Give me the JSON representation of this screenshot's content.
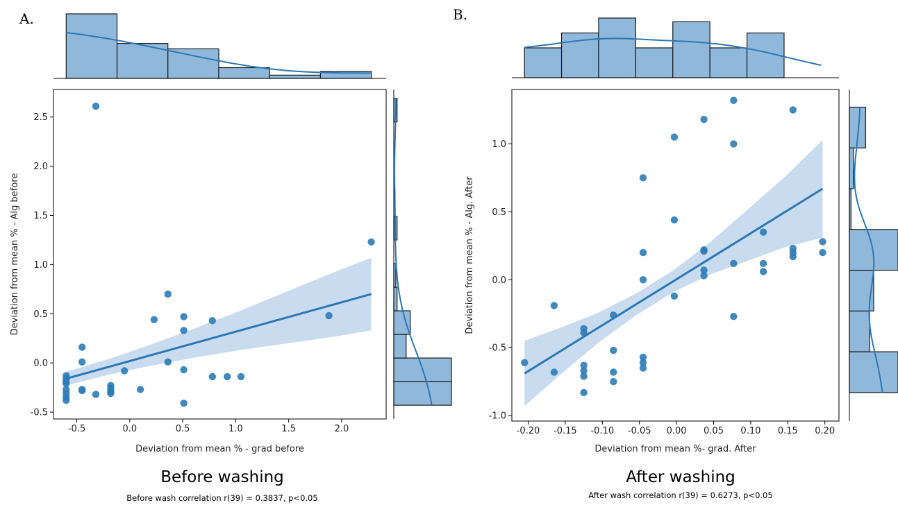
{
  "panels": [
    {
      "letter": "A.",
      "title": "Before washing",
      "subtitle": "Before wash correlation r(39) = 0.3837, p<0.05"
    },
    {
      "letter": "B.",
      "title": "After washing",
      "subtitle": "After wash correlation r(39) = 0.6273, p<0.05"
    }
  ],
  "colors": {
    "point": "#2c7bb6",
    "line": "#2b76b5",
    "band": "#c9dcef",
    "bar": "#8fb8da",
    "bar_edge": "#1b1b1b"
  },
  "chart_data": [
    {
      "type": "scatter",
      "title": "Before washing",
      "xlabel": "Deviation from mean % - grad before",
      "ylabel": "Deviation from mean % - Alg before",
      "xlim": [
        -0.72,
        2.42
      ],
      "ylim": [
        -0.57,
        2.78
      ],
      "xticks": [
        "-0.5",
        "0.0",
        "0.5",
        "1.0",
        "1.5",
        "2.0"
      ],
      "yticks": [
        "-0.5",
        "0.0",
        "0.5",
        "1.0",
        "1.5",
        "2.0",
        "2.5"
      ],
      "points": [
        [
          -0.6,
          -0.13
        ],
        [
          -0.6,
          -0.16
        ],
        [
          -0.6,
          -0.19
        ],
        [
          -0.6,
          -0.21
        ],
        [
          -0.6,
          -0.27
        ],
        [
          -0.6,
          -0.31
        ],
        [
          -0.6,
          -0.35
        ],
        [
          -0.6,
          -0.38
        ],
        [
          -0.45,
          0.16
        ],
        [
          -0.45,
          0.01
        ],
        [
          -0.45,
          -0.27
        ],
        [
          -0.45,
          -0.28
        ],
        [
          -0.32,
          2.61
        ],
        [
          -0.32,
          -0.32
        ],
        [
          -0.18,
          -0.23
        ],
        [
          -0.18,
          -0.26
        ],
        [
          -0.18,
          -0.29
        ],
        [
          -0.18,
          -0.31
        ],
        [
          -0.05,
          -0.08
        ],
        [
          0.1,
          -0.27
        ],
        [
          0.23,
          0.44
        ],
        [
          0.36,
          0.7
        ],
        [
          0.36,
          0.01
        ],
        [
          0.51,
          0.47
        ],
        [
          0.51,
          0.33
        ],
        [
          0.51,
          -0.07
        ],
        [
          0.51,
          -0.41
        ],
        [
          0.78,
          0.43
        ],
        [
          0.78,
          -0.14
        ],
        [
          0.92,
          -0.14
        ],
        [
          1.05,
          -0.14
        ],
        [
          1.88,
          0.48
        ],
        [
          2.28,
          1.23
        ]
      ],
      "regression": {
        "x": [
          -0.6,
          2.28
        ],
        "y": [
          -0.16,
          0.7
        ],
        "band_halfwidth": [
          0.07,
          0.08,
          0.11,
          0.15,
          0.2,
          0.26,
          0.32,
          0.37
        ]
      },
      "x_hist": {
        "edges": [
          -0.6,
          -0.12,
          0.36,
          0.84,
          1.32,
          1.8,
          2.28
        ],
        "heights": [
          12,
          6.5,
          5.5,
          2,
          0.6,
          1.3
        ],
        "max": 12
      },
      "y_hist": {
        "edges": [
          -0.43,
          -0.19,
          0.05,
          0.29,
          0.53,
          0.77,
          1.01,
          1.25,
          1.49,
          2.45,
          2.69
        ],
        "widths": [
          14,
          14,
          3,
          4,
          0.8,
          0.5,
          0,
          0.8,
          0,
          0.8
        ],
        "max": 14
      }
    },
    {
      "type": "scatter",
      "title": "After washing",
      "xlabel": "Deviation from mean %- grad. After",
      "ylabel": "Deviation from mean % - Alg. After",
      "xlim": [
        -0.222,
        0.219
      ],
      "ylim": [
        -1.04,
        1.4
      ],
      "xticks": [
        "-0.20",
        "-0.15",
        "-0.10",
        "-0.05",
        "0.00",
        "0.05",
        "0.10",
        "0.15",
        "0.20"
      ],
      "yticks": [
        "-1.0",
        "-0.5",
        "0.0",
        "0.5",
        "1.0"
      ],
      "points": [
        [
          -0.205,
          -0.61
        ],
        [
          -0.165,
          -0.19
        ],
        [
          -0.165,
          -0.68
        ],
        [
          -0.125,
          -0.36
        ],
        [
          -0.125,
          -0.39
        ],
        [
          -0.125,
          -0.63
        ],
        [
          -0.125,
          -0.67
        ],
        [
          -0.125,
          -0.71
        ],
        [
          -0.125,
          -0.83
        ],
        [
          -0.085,
          -0.26
        ],
        [
          -0.085,
          -0.52
        ],
        [
          -0.085,
          -0.68
        ],
        [
          -0.085,
          -0.75
        ],
        [
          -0.045,
          0.75
        ],
        [
          -0.045,
          0.2
        ],
        [
          -0.045,
          0.0
        ],
        [
          -0.045,
          -0.57
        ],
        [
          -0.045,
          -0.61
        ],
        [
          -0.045,
          -0.65
        ],
        [
          -0.003,
          1.05
        ],
        [
          -0.003,
          0.44
        ],
        [
          -0.003,
          -0.12
        ],
        [
          0.037,
          1.18
        ],
        [
          0.037,
          0.22
        ],
        [
          0.037,
          0.21
        ],
        [
          0.037,
          0.07
        ],
        [
          0.037,
          0.03
        ],
        [
          0.077,
          1.32
        ],
        [
          0.077,
          1.0
        ],
        [
          0.077,
          0.12
        ],
        [
          0.077,
          -0.27
        ],
        [
          0.117,
          0.35
        ],
        [
          0.117,
          0.12
        ],
        [
          0.117,
          0.06
        ],
        [
          0.157,
          1.25
        ],
        [
          0.157,
          0.23
        ],
        [
          0.157,
          0.2
        ],
        [
          0.157,
          0.17
        ],
        [
          0.197,
          0.28
        ],
        [
          0.197,
          0.2
        ]
      ],
      "regression": {
        "x": [
          -0.205,
          0.197
        ],
        "y": [
          -0.69,
          0.67
        ],
        "band_halfwidth": [
          0.24,
          0.17,
          0.11,
          0.08,
          0.08,
          0.12,
          0.19,
          0.26,
          0.36
        ]
      },
      "x_hist": {
        "edges": [
          -0.205,
          -0.155,
          -0.105,
          -0.055,
          -0.005,
          0.045,
          0.095,
          0.145,
          0.195
        ],
        "heights": [
          4,
          6,
          8,
          4,
          7.5,
          4,
          6,
          0
        ],
        "max": 8
      },
      "y_hist": {
        "edges": [
          -0.83,
          -0.53,
          -0.23,
          0.07,
          0.37,
          0.67,
          0.97,
          1.27
        ],
        "widths": [
          6,
          2.5,
          3,
          6,
          0.2,
          0.5,
          2
        ],
        "max": 6
      }
    }
  ]
}
